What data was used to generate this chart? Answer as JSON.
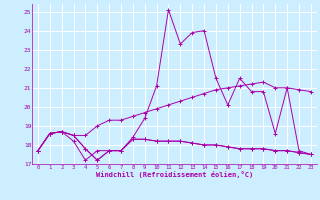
{
  "xlabel": "Windchill (Refroidissement éolien,°C)",
  "background_color": "#cceeff",
  "grid_color": "#ffffff",
  "line_color": "#aa00aa",
  "xlim": [
    -0.5,
    23.5
  ],
  "ylim": [
    17,
    25.4
  ],
  "yticks": [
    17,
    18,
    19,
    20,
    21,
    22,
    23,
    24,
    25
  ],
  "xticks": [
    0,
    1,
    2,
    3,
    4,
    5,
    6,
    7,
    8,
    9,
    10,
    11,
    12,
    13,
    14,
    15,
    16,
    17,
    18,
    19,
    20,
    21,
    22,
    23
  ],
  "line1_y": [
    17.7,
    18.6,
    18.7,
    18.5,
    17.8,
    17.2,
    17.7,
    17.7,
    18.3,
    18.3,
    18.2,
    18.2,
    18.2,
    18.1,
    18.0,
    18.0,
    17.9,
    17.8,
    17.8,
    17.8,
    17.7,
    17.7,
    17.6,
    17.5
  ],
  "line2_y": [
    17.7,
    18.6,
    18.7,
    18.5,
    18.5,
    19.0,
    19.3,
    19.3,
    19.5,
    19.7,
    19.9,
    20.1,
    20.3,
    20.5,
    20.7,
    20.9,
    21.0,
    21.1,
    21.2,
    21.3,
    21.0,
    21.0,
    20.9,
    20.8
  ],
  "line3_y": [
    17.7,
    18.6,
    18.7,
    18.2,
    17.2,
    17.7,
    17.7,
    17.7,
    18.4,
    19.4,
    21.1,
    25.1,
    23.3,
    23.9,
    24.0,
    21.5,
    20.1,
    21.5,
    20.8,
    20.8,
    18.6,
    21.0,
    17.7,
    17.5
  ],
  "line4_y": [
    17.7,
    18.6,
    18.7,
    18.5,
    17.8,
    17.2,
    17.7,
    17.7,
    18.3,
    18.3,
    18.2,
    18.2,
    18.2,
    18.1,
    18.0,
    18.0,
    17.9,
    17.8,
    17.8,
    17.8,
    17.7,
    17.7,
    17.6,
    17.5
  ]
}
